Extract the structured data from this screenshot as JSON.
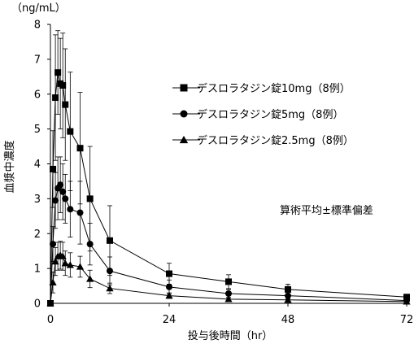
{
  "chart_data": {
    "type": "line",
    "unit_label": "（ng/mL）",
    "ylabel": "血漿中濃度",
    "xlabel": "投与後時間（hr）",
    "note": "算術平均±標準偏差",
    "xlim": [
      0,
      72
    ],
    "ylim": [
      0,
      8
    ],
    "xticks": [
      "0",
      "24",
      "48",
      "72"
    ],
    "yticks": [
      "0",
      "1",
      "2",
      "3",
      "4",
      "5",
      "6",
      "7",
      "8"
    ],
    "grid": false,
    "legend_position": "upper-right",
    "series": [
      {
        "name": "デスロラタジン錠10mg（8例）",
        "marker": "square",
        "x": [
          0,
          0.5,
          1,
          1.5,
          2,
          2.5,
          3,
          4,
          6,
          8,
          12,
          24,
          36,
          48,
          72
        ],
        "y": [
          0,
          3.85,
          5.9,
          6.62,
          6.3,
          6.25,
          5.7,
          4.93,
          4.45,
          3.0,
          1.8,
          0.85,
          0.62,
          0.4,
          0.18
        ],
        "err": [
          0,
          1.1,
          1.8,
          1.2,
          1.3,
          1.5,
          1.6,
          1.7,
          1.6,
          1.5,
          1.0,
          0.3,
          0.2,
          0.15,
          0.08
        ]
      },
      {
        "name": "デスロラタジン錠5mg（8例）",
        "marker": "circle",
        "x": [
          0,
          0.5,
          1,
          1.5,
          2,
          2.5,
          3,
          4,
          6,
          8,
          12,
          24,
          36,
          48,
          72
        ],
        "y": [
          0,
          1.7,
          2.95,
          3.3,
          3.4,
          3.2,
          3.0,
          2.7,
          2.6,
          1.7,
          0.93,
          0.47,
          0.28,
          0.22,
          0.08
        ],
        "err": [
          0,
          0.5,
          0.8,
          0.9,
          0.8,
          0.8,
          0.7,
          0.8,
          0.9,
          0.6,
          0.4,
          0.2,
          0.12,
          0.1,
          0.05
        ]
      },
      {
        "name": "デスロラタジン錠2.5mg（8例）",
        "marker": "triangle",
        "x": [
          0,
          0.5,
          1,
          1.5,
          2,
          2.5,
          3,
          4,
          6,
          8,
          12,
          24,
          36,
          48,
          72
        ],
        "y": [
          0,
          0.6,
          1.2,
          1.35,
          1.38,
          1.35,
          1.15,
          1.1,
          1.05,
          0.7,
          0.43,
          0.22,
          0.12,
          0.1,
          0.05
        ],
        "err": [
          0,
          0.3,
          0.4,
          0.4,
          0.4,
          0.4,
          0.35,
          0.35,
          0.3,
          0.25,
          0.15,
          0.08,
          0.05,
          0.04,
          0.03
        ]
      }
    ]
  }
}
